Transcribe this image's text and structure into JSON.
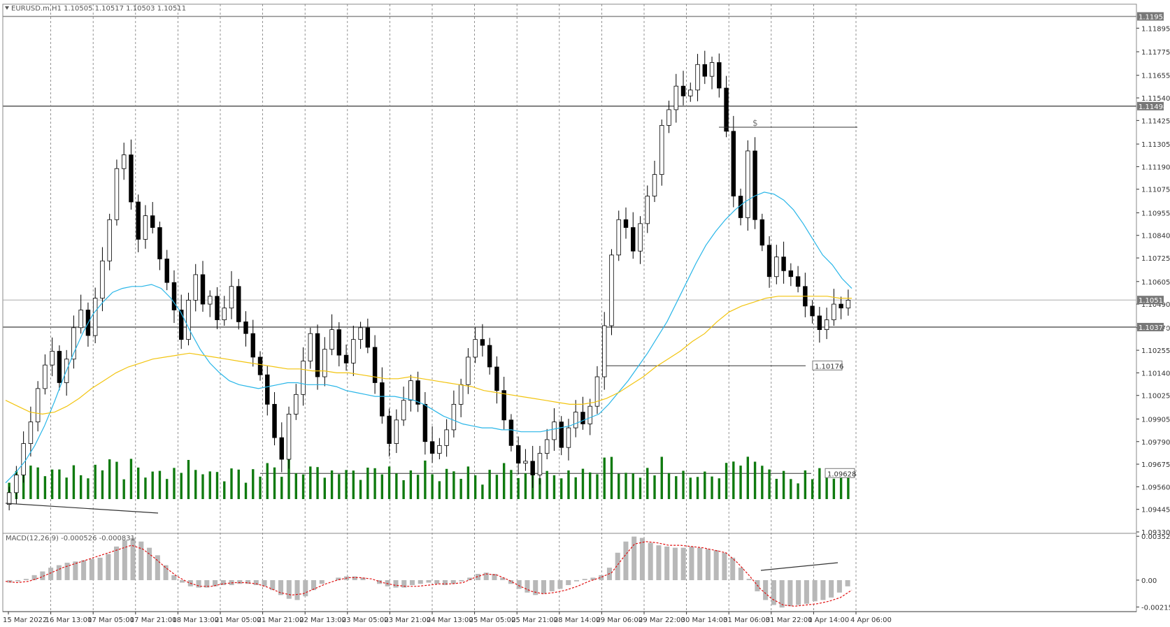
{
  "window": {
    "symbol_header": "EURUSD.m,H1  1.10505 1.10517 1.10503 1.10511"
  },
  "indicators": {
    "macd_label": "MACD(12,26,9) -0.000526 -0.000831"
  },
  "colors": {
    "background": "#ffffff",
    "candle": "#000000",
    "volume": "#0f7a0f",
    "ma_fast": "#29b6e8",
    "ma_slow": "#f2c40f",
    "macd_hist": "#b8b8b8",
    "macd_signal": "#e01010",
    "grid": "#777777",
    "level_line": "#808080",
    "tag_fill": "#777777"
  },
  "chart_data": [
    {
      "type": "candlestick",
      "y_scale": "price",
      "ylim": [
        1.0933,
        1.1201
      ],
      "x_tick_labels": [
        "15 Mar 2022",
        "16 Mar 13:00",
        "17 Mar 05:00",
        "17 Mar 21:00",
        "18 Mar 13:00",
        "21 Mar 05:00",
        "21 Mar 21:00",
        "22 Mar 13:00",
        "23 Mar 05:00",
        "23 Mar 21:00",
        "24 Mar 13:00",
        "25 Mar 05:00",
        "25 Mar 21:00",
        "28 Mar 14:00",
        "29 Mar 06:00",
        "29 Mar 22:00",
        "30 Mar 14:00",
        "31 Mar 06:00",
        "31 Mar 22:00",
        "1 Apr 14:00",
        "4 Apr 06:00"
      ],
      "y_tick_labels": [
        "1.11895",
        "1.11775",
        "1.11655",
        "1.11540",
        "1.11425",
        "1.11305",
        "1.11190",
        "1.11075",
        "1.10955",
        "1.10840",
        "1.10725",
        "1.10605",
        "1.10490",
        "1.10370",
        "1.10255",
        "1.10140",
        "1.10025",
        "1.09905",
        "1.09790",
        "1.09675",
        "1.09560",
        "1.09445",
        "1.09330"
      ],
      "series": [
        {
          "kind": "close",
          "values": [
            1.0953,
            1.0962,
            1.0978,
            1.0989,
            1.1006,
            1.1018,
            1.1025,
            1.1009,
            1.1021,
            1.1037,
            1.1046,
            1.1033,
            1.1052,
            1.1071,
            1.1092,
            1.1118,
            1.1125,
            1.1101,
            1.1082,
            1.1094,
            1.1088,
            1.1072,
            1.106,
            1.1046,
            1.1031,
            1.1051,
            1.1064,
            1.1049,
            1.1053,
            1.1041,
            1.1047,
            1.1058,
            1.104,
            1.1034,
            1.1022,
            1.1013,
            1.0998,
            1.0981,
            1.097,
            1.0993,
            1.1003,
            1.102,
            1.1034,
            1.1012,
            1.1026,
            1.1036,
            1.1023,
            1.1019,
            1.1031,
            1.1037,
            1.1027,
            1.1009,
            1.0992,
            1.0978,
            1.099,
            1.1,
            1.101,
            1.0998,
            1.0979,
            1.0973,
            1.0977,
            1.0985,
            1.0998,
            1.1008,
            1.1022,
            1.1031,
            1.1028,
            1.1017,
            1.1005,
            1.099,
            1.0977,
            1.0968,
            1.0969,
            1.0962,
            1.0973,
            1.098,
            1.0989,
            1.0976,
            1.0986,
            1.0994,
            1.0988,
            1.0997,
            1.1012,
            1.1038,
            1.1074,
            1.1092,
            1.1088,
            1.1076,
            1.109,
            1.1104,
            1.1115,
            1.114,
            1.1148,
            1.116,
            1.1155,
            1.1158,
            1.1171,
            1.1165,
            1.1172,
            1.1159,
            1.1137,
            1.1104,
            1.1093,
            1.1127,
            1.1092,
            1.1079,
            1.1063,
            1.1073,
            1.1066,
            1.1063,
            1.1058,
            1.1048,
            1.1043,
            1.1036,
            1.1041,
            1.1049,
            1.1047,
            1.1051
          ]
        }
      ],
      "moving_averages": [
        {
          "color": "#29b6e8",
          "values": [
            1.0958,
            1.0963,
            1.0969,
            1.0977,
            1.0987,
            1.0999,
            1.1012,
            1.1024,
            1.1035,
            1.1044,
            1.105,
            1.1055,
            1.1057,
            1.1058,
            1.1058,
            1.1059,
            1.1057,
            1.1052,
            1.1045,
            1.1035,
            1.1026,
            1.1019,
            1.1014,
            1.101,
            1.1008,
            1.1007,
            1.1006,
            1.1007,
            1.1008,
            1.1009,
            1.1009,
            1.1008,
            1.1008,
            1.1008,
            1.1007,
            1.1005,
            1.1004,
            1.1003,
            1.1002,
            1.1002,
            1.1002,
            1.1001,
            1.1,
            1.0998,
            1.0995,
            1.0992,
            1.099,
            1.0988,
            1.0987,
            1.0986,
            1.0986,
            1.0985,
            1.0985,
            1.0984,
            1.0984,
            1.0984,
            1.0985,
            1.0986,
            1.0987,
            1.0989,
            1.0991,
            1.0993,
            1.0998,
            1.1004,
            1.101,
            1.1017,
            1.1024,
            1.1032,
            1.104,
            1.105,
            1.106,
            1.107,
            1.1079,
            1.1086,
            1.1092,
            1.1097,
            1.1101,
            1.1104,
            1.1106,
            1.1105,
            1.1102,
            1.1097,
            1.109,
            1.1082,
            1.1074,
            1.1069,
            1.1062,
            1.1057
          ],
          "x_start_index": 0
        },
        {
          "color": "#f2c40f",
          "values": [
            1.1,
            1.0997,
            1.0994,
            1.0993,
            1.0994,
            1.0997,
            1.1001,
            1.1006,
            1.101,
            1.1014,
            1.1017,
            1.1019,
            1.1021,
            1.1022,
            1.1023,
            1.1024,
            1.1023,
            1.1022,
            1.1021,
            1.102,
            1.1019,
            1.1018,
            1.1017,
            1.1016,
            1.1016,
            1.1015,
            1.1015,
            1.1014,
            1.1014,
            1.1013,
            1.1012,
            1.1011,
            1.1011,
            1.1012,
            1.1011,
            1.101,
            1.1009,
            1.1008,
            1.1007,
            1.1005,
            1.1004,
            1.1003,
            1.1002,
            1.1001,
            1.1,
            1.0999,
            1.0998,
            1.0998,
            1.0999,
            1.1001,
            1.1004,
            1.1008,
            1.1012,
            1.1017,
            1.1021,
            1.1025,
            1.103,
            1.1034,
            1.104,
            1.1045,
            1.1048,
            1.105,
            1.1052,
            1.1053,
            1.1053,
            1.1053,
            1.1053,
            1.1053,
            1.1052,
            1.1052
          ],
          "x_start_index": 0
        }
      ],
      "price_levels": [
        {
          "label": "1.11498",
          "value": 1.11498
        },
        {
          "label": "1.10373",
          "value": 1.10373
        },
        {
          "label": "1.10511",
          "value": 1.10511
        },
        {
          "label": "1.10176",
          "value": 1.10176
        },
        {
          "label": "1.09628",
          "value": 1.09628
        },
        {
          "label": "1.11955",
          "value": 1.11955
        }
      ],
      "annotations": [
        "$"
      ]
    },
    {
      "type": "bar",
      "title": "MACD(12,26,9) -0.000526 -0.000831",
      "ylim": [
        -0.00242,
        0.00365
      ],
      "y_tick_labels": [
        "0.003526",
        "0.00",
        "-0.002158"
      ],
      "series": [
        {
          "name": "MACD",
          "kind": "histogram",
          "values": [
            -0.0002,
            -0.0001,
            0.0001,
            0.0004,
            0.0007,
            0.001,
            0.0012,
            0.0014,
            0.0015,
            0.0016,
            0.0017,
            0.0018,
            0.0021,
            0.0027,
            0.0032,
            0.0034,
            0.0031,
            0.0026,
            0.002,
            0.0012,
            0.0004,
            -0.0002,
            -0.0005,
            -0.0006,
            -0.0006,
            -0.0005,
            -0.0004,
            -0.0004,
            -0.0003,
            -0.0003,
            -0.0004,
            -0.0005,
            -0.0008,
            -0.0012,
            -0.0015,
            -0.0016,
            -0.0013,
            -0.0008,
            -0.0003,
            0.0,
            0.0002,
            0.0003,
            0.0003,
            0.0002,
            0.0,
            -0.0003,
            -0.0005,
            -0.0006,
            -0.0006,
            -0.0004,
            -0.0003,
            -0.0002,
            -0.0003,
            -0.0004,
            -0.0003,
            -0.0001,
            0.0002,
            0.0005,
            0.0006,
            0.0005,
            0.0002,
            -0.0003,
            -0.0007,
            -0.001,
            -0.0012,
            -0.0011,
            -0.0009,
            -0.0007,
            -0.0004,
            -0.0001,
            0.0001,
            0.0002,
            0.0004,
            0.001,
            0.0022,
            0.0031,
            0.0035,
            0.0034,
            0.003,
            0.0028,
            0.0027,
            0.0026,
            0.0026,
            0.0027,
            0.0026,
            0.0025,
            0.0024,
            0.0022,
            0.0018,
            0.001,
            0.0001,
            -0.0009,
            -0.0016,
            -0.002,
            -0.0022,
            -0.0021,
            -0.002,
            -0.0019,
            -0.0017,
            -0.0016,
            -0.0014,
            -0.001,
            -0.0005
          ]
        },
        {
          "name": "Signal",
          "kind": "line",
          "values": [
            -0.0001,
            -0.0002,
            -0.0001,
            0.0002,
            0.0006,
            0.001,
            0.0013,
            0.0016,
            0.0019,
            0.0022,
            0.0025,
            0.0028,
            0.0025,
            0.0018,
            0.001,
            0.0003,
            -0.0002,
            -0.0005,
            -0.0005,
            -0.0003,
            -0.0002,
            -0.0002,
            -0.0003,
            -0.0006,
            -0.001,
            -0.0012,
            -0.0011,
            -0.0007,
            -0.0003,
            0.0,
            0.0002,
            0.0002,
            0.0001,
            -0.0002,
            -0.0004,
            -0.0005,
            -0.0005,
            -0.0004,
            -0.0003,
            -0.0003,
            -0.0002,
            0.0002,
            0.0005,
            0.0004,
            0.0,
            -0.0005,
            -0.0009,
            -0.0011,
            -0.001,
            -0.0008,
            -0.0005,
            -0.0001,
            0.0002,
            0.0006,
            0.0018,
            0.0029,
            0.0031,
            0.003,
            0.0028,
            0.0028,
            0.0027,
            0.0026,
            0.0024,
            0.0022,
            0.0014,
            0.0004,
            -0.0007,
            -0.0015,
            -0.002,
            -0.0021,
            -0.002,
            -0.0019,
            -0.0017,
            -0.0014,
            -0.0008
          ]
        }
      ]
    }
  ]
}
